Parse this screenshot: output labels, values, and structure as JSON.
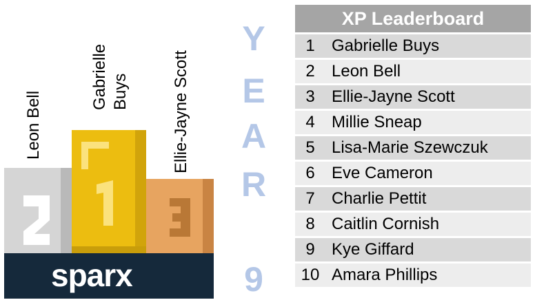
{
  "podium": {
    "first_name": "Gabrielle\nBuys",
    "second_name": "Leon Bell",
    "third_name": "Ellie-Jayne Scott",
    "brand": "sparx",
    "brand_x": "x"
  },
  "year": {
    "letters": [
      "Y",
      "E",
      "A",
      "R"
    ],
    "number": "9"
  },
  "leaderboard": {
    "title": "XP Leaderboard",
    "rows": [
      {
        "rank": "1",
        "name": "Gabrielle Buys"
      },
      {
        "rank": "2",
        "name": "Leon Bell"
      },
      {
        "rank": "3",
        "name": "Ellie-Jayne Scott"
      },
      {
        "rank": "4",
        "name": "Millie Sneap"
      },
      {
        "rank": "5",
        "name": "Lisa-Marie Szewczuk"
      },
      {
        "rank": "6",
        "name": "Eve Cameron"
      },
      {
        "rank": "7",
        "name": "Charlie Pettit"
      },
      {
        "rank": "8",
        "name": "Caitlin Cornish"
      },
      {
        "rank": "9",
        "name": "Kye Giffard"
      },
      {
        "rank": "10",
        "name": "Amara Phillips"
      }
    ]
  },
  "colors": {
    "gold": "#e9bb0c",
    "silver": "#d6d6d6",
    "bronze": "#e8a25a",
    "brand_bg": "#15293b",
    "year_text": "#b4c7e7",
    "header_bg": "#a5a5a5"
  }
}
